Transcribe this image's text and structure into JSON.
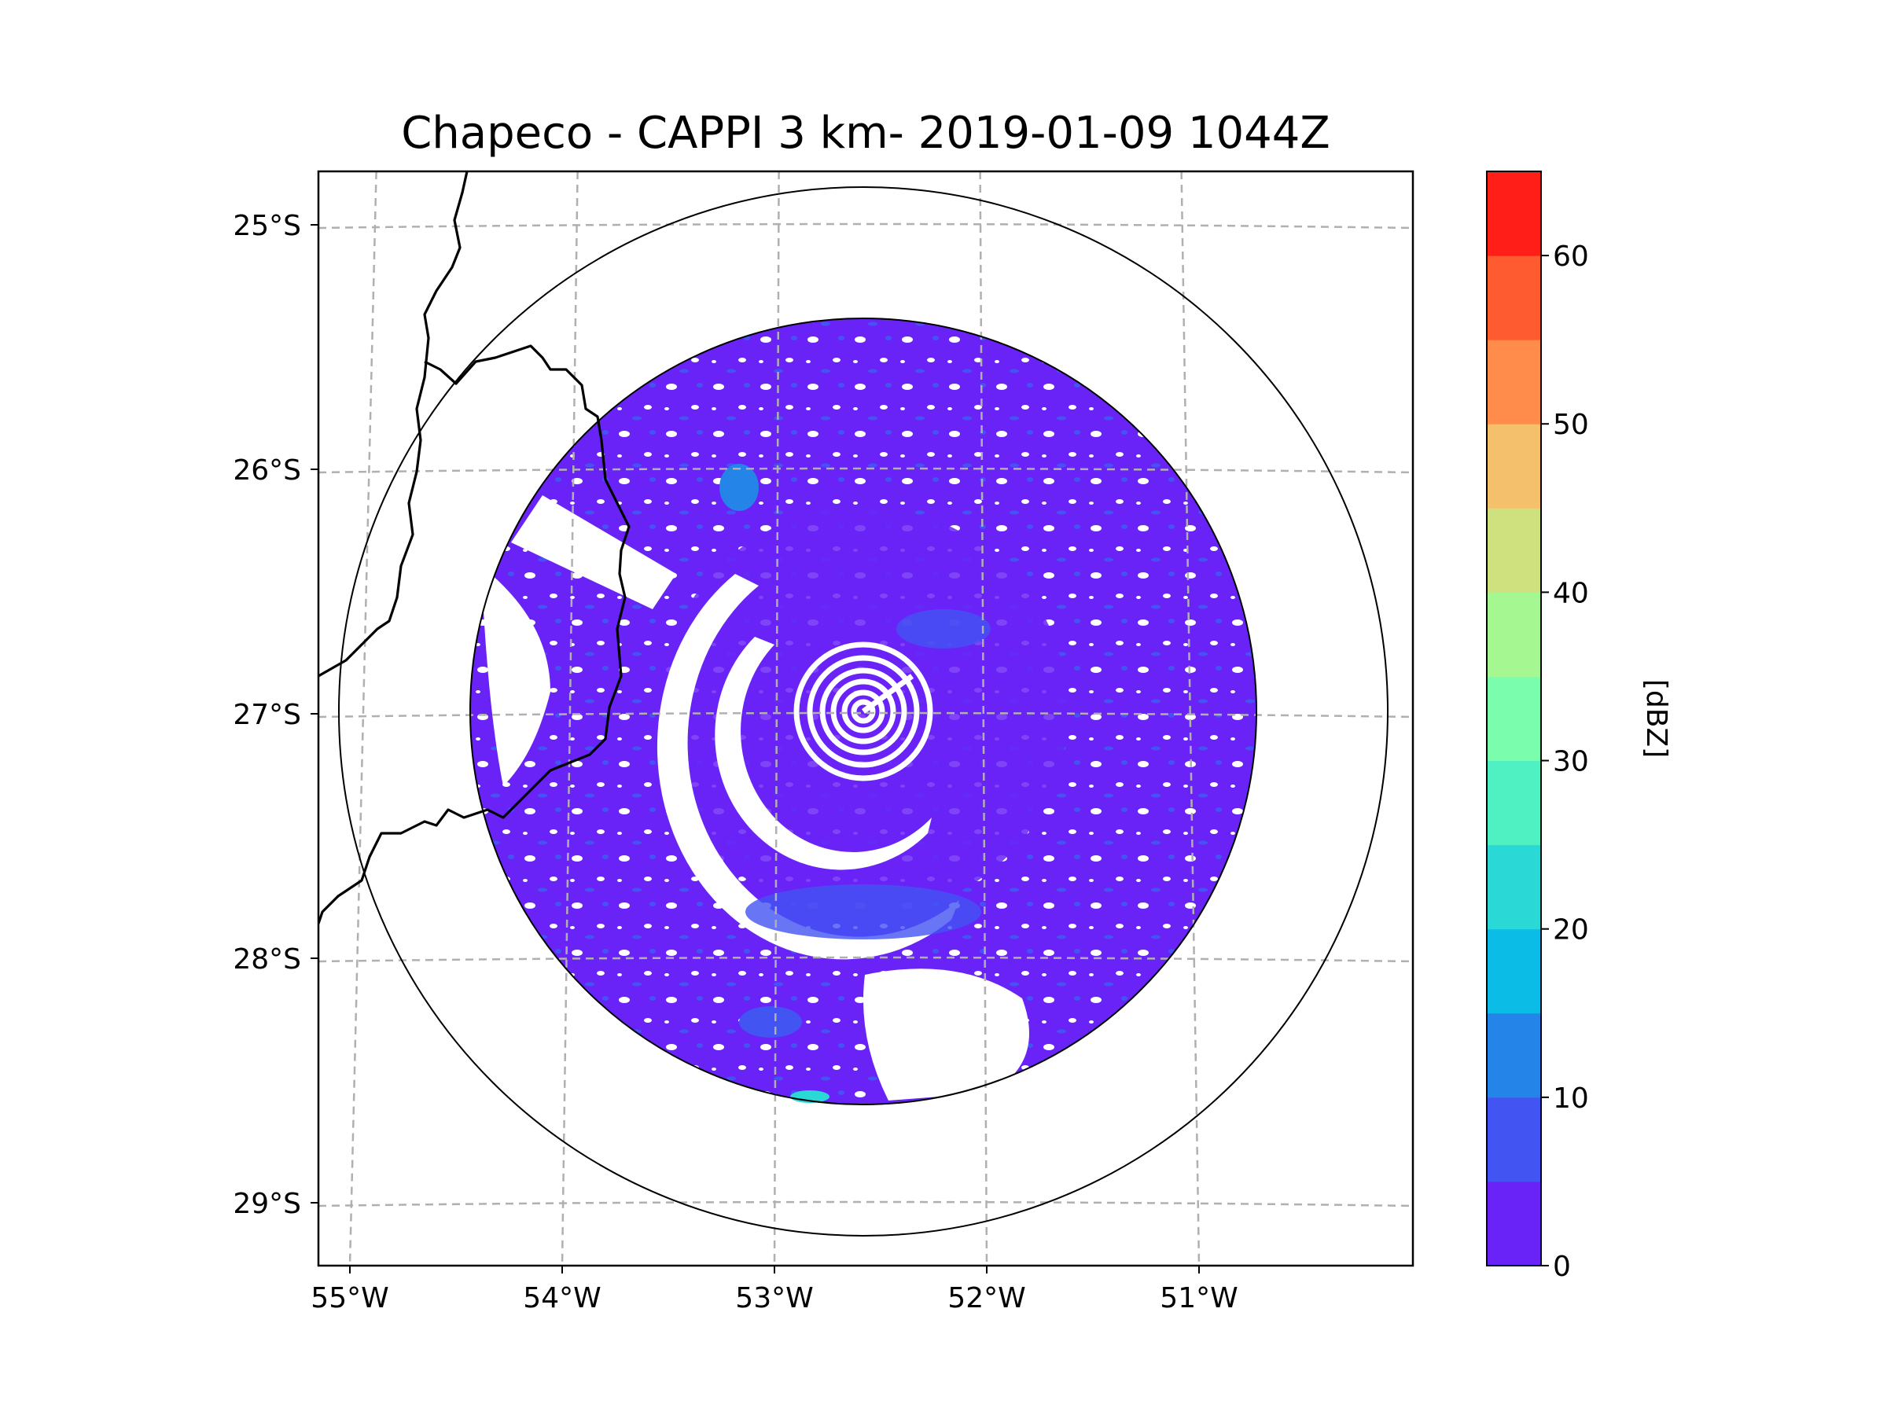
{
  "chart_data": {
    "type": "radar_map",
    "title": "Chapeco - CAPPI 3 km- 2019-01-09 1044Z",
    "radar_site": "Chapeco",
    "product": "CAPPI 3 km",
    "datetime": "2019-01-09 1044Z",
    "radar_center": {
      "lon": -52.6,
      "lat": -27.0
    },
    "extent": {
      "lon_min": -55.2,
      "lon_max": -50.05,
      "lat_min": -29.28,
      "lat_max": -24.78
    },
    "range_rings_km": [
      150,
      250
    ],
    "x_ticks": [
      {
        "value": -55,
        "label": "55°W"
      },
      {
        "value": -54,
        "label": "54°W"
      },
      {
        "value": -53,
        "label": "53°W"
      },
      {
        "value": -52,
        "label": "52°W"
      },
      {
        "value": -51,
        "label": "51°W"
      }
    ],
    "y_ticks": [
      {
        "value": -25,
        "label": "25°S"
      },
      {
        "value": -26,
        "label": "26°S"
      },
      {
        "value": -27,
        "label": "27°S"
      },
      {
        "value": -28,
        "label": "28°S"
      },
      {
        "value": -29,
        "label": "29°S"
      }
    ],
    "colorbar": {
      "label": "[dBZ]",
      "range": [
        0,
        65
      ],
      "ticks": [
        {
          "value": 0,
          "label": "0"
        },
        {
          "value": 10,
          "label": "10"
        },
        {
          "value": 20,
          "label": "20"
        },
        {
          "value": 30,
          "label": "30"
        },
        {
          "value": 40,
          "label": "40"
        },
        {
          "value": 50,
          "label": "50"
        },
        {
          "value": 60,
          "label": "60"
        }
      ],
      "bins": [
        {
          "from": 0,
          "to": 5,
          "color": "#6a23f7"
        },
        {
          "from": 5,
          "to": 10,
          "color": "#4254f2"
        },
        {
          "from": 10,
          "to": 15,
          "color": "#2484e8"
        },
        {
          "from": 15,
          "to": 20,
          "color": "#0bbde6"
        },
        {
          "from": 20,
          "to": 25,
          "color": "#2ad8d5"
        },
        {
          "from": 25,
          "to": 30,
          "color": "#4ff0c2"
        },
        {
          "from": 30,
          "to": 35,
          "color": "#7bfdae"
        },
        {
          "from": 35,
          "to": 40,
          "color": "#a5f891"
        },
        {
          "from": 40,
          "to": 45,
          "color": "#cfe07e"
        },
        {
          "from": 45,
          "to": 50,
          "color": "#f4c06b"
        },
        {
          "from": 50,
          "to": 55,
          "color": "#ff8c4b"
        },
        {
          "from": 55,
          "to": 60,
          "color": "#ff5b30"
        },
        {
          "from": 60,
          "to": 65,
          "color": "#ff1e18"
        }
      ]
    },
    "dominant_reflectivity_dbz": "0-10"
  }
}
